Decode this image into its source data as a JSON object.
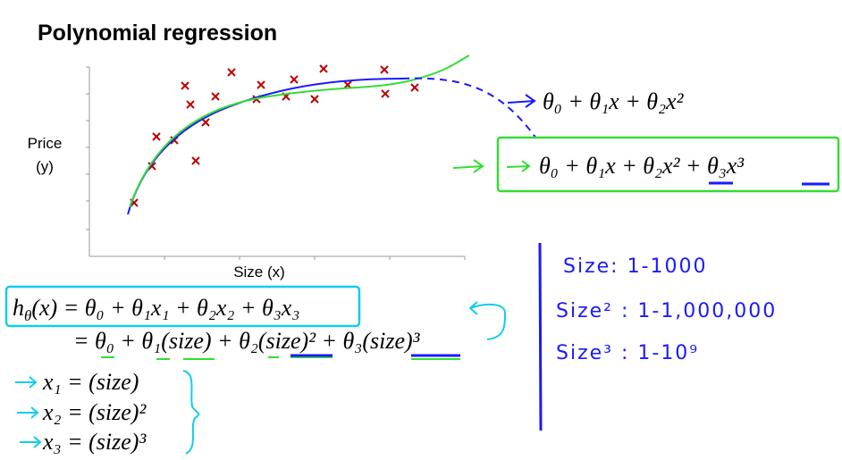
{
  "title": "Polynomial regression",
  "plot": {
    "y_label": [
      "Price",
      "(y)"
    ],
    "x_label": "Size (x)"
  },
  "models": [
    "θ₀ + θ₁x + θ₂x²",
    "θ₀ + θ₁x + θ₂x² + θ₃x³"
  ],
  "hypothesis": {
    "lhs_h": "h",
    "lhs_sub": "θ",
    "lhs_rest": "(x) = θ₀ + θ₁x₁ + θ₂x₂ + θ₃x₃",
    "line2": "= θ₀ + θ₁(size) + θ₂(size)² + θ₃(size)³"
  },
  "features": [
    "x₁ = (size)",
    "x₂ = (size)²",
    "x₃ = (size)³"
  ],
  "ranges": [
    "Size: 1-1000",
    "Size² : 1-1,000,000",
    "Size³ : 1-10⁹"
  ]
}
